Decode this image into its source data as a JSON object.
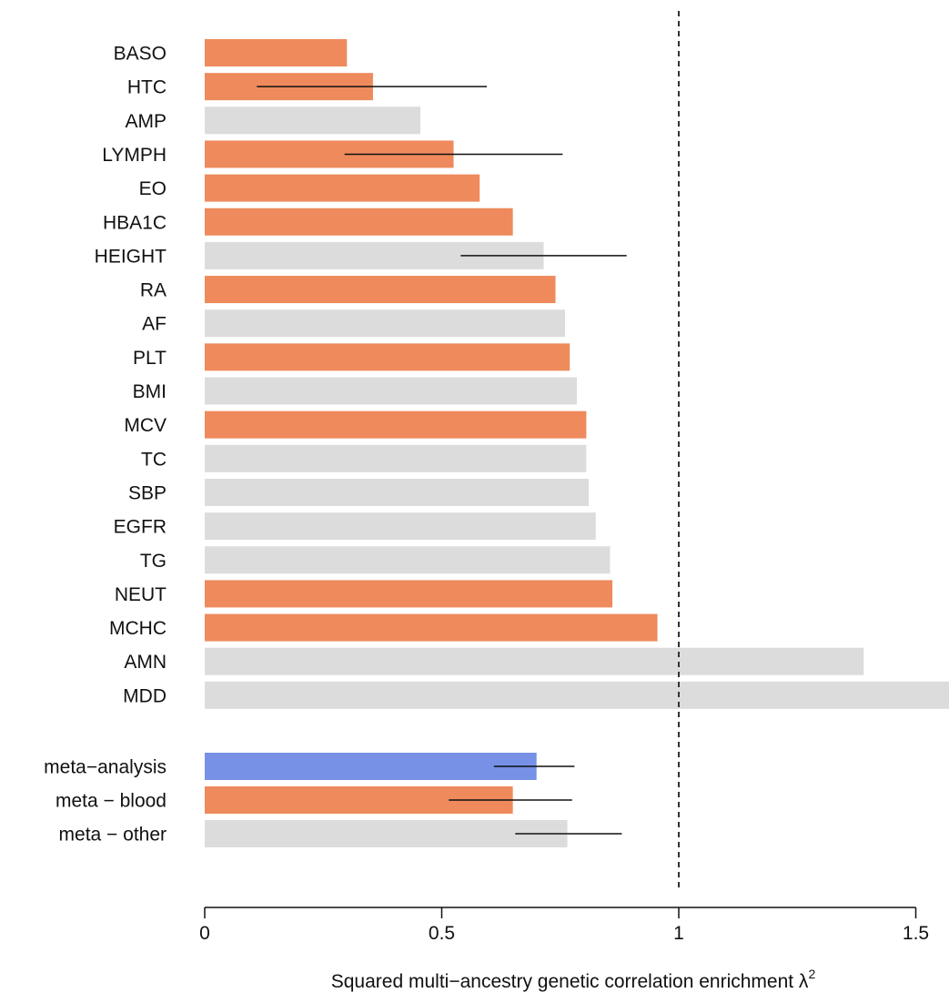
{
  "chart_data": {
    "type": "bar",
    "orientation": "horizontal",
    "colors": {
      "blood": "#EE8A5C",
      "other": "#DCDCDC",
      "meta": "#7691E6"
    },
    "bars": [
      {
        "label": "BASO",
        "value": 0.3,
        "group": "blood",
        "ci": null
      },
      {
        "label": "HTC",
        "value": 0.355,
        "group": "blood",
        "ci": [
          0.11,
          0.595
        ]
      },
      {
        "label": "AMP",
        "value": 0.455,
        "group": "other",
        "ci": null
      },
      {
        "label": "LYMPH",
        "value": 0.525,
        "group": "blood",
        "ci": [
          0.295,
          0.755
        ]
      },
      {
        "label": "EO",
        "value": 0.58,
        "group": "blood",
        "ci": null
      },
      {
        "label": "HBA1C",
        "value": 0.65,
        "group": "blood",
        "ci": null
      },
      {
        "label": "HEIGHT",
        "value": 0.715,
        "group": "other",
        "ci": [
          0.54,
          0.89
        ]
      },
      {
        "label": "RA",
        "value": 0.74,
        "group": "blood",
        "ci": null
      },
      {
        "label": "AF",
        "value": 0.76,
        "group": "other",
        "ci": null
      },
      {
        "label": "PLT",
        "value": 0.77,
        "group": "blood",
        "ci": null
      },
      {
        "label": "BMI",
        "value": 0.785,
        "group": "other",
        "ci": null
      },
      {
        "label": "MCV",
        "value": 0.805,
        "group": "blood",
        "ci": null
      },
      {
        "label": "TC",
        "value": 0.805,
        "group": "other",
        "ci": null
      },
      {
        "label": "SBP",
        "value": 0.81,
        "group": "other",
        "ci": null
      },
      {
        "label": "EGFR",
        "value": 0.825,
        "group": "other",
        "ci": null
      },
      {
        "label": "TG",
        "value": 0.855,
        "group": "other",
        "ci": null
      },
      {
        "label": "NEUT",
        "value": 0.86,
        "group": "blood",
        "ci": null
      },
      {
        "label": "MCHC",
        "value": 0.955,
        "group": "blood",
        "ci": null
      },
      {
        "label": "AMN",
        "value": 1.39,
        "group": "other",
        "ci": null
      },
      {
        "label": "MDD",
        "value": 1.6,
        "group": "other",
        "ci": null
      },
      {
        "label": "meta−analysis",
        "value": 0.7,
        "group": "meta",
        "ci": [
          0.61,
          0.78
        ]
      },
      {
        "label": "meta − blood",
        "value": 0.65,
        "group": "blood",
        "ci": [
          0.515,
          0.775
        ]
      },
      {
        "label": "meta − other",
        "value": 0.765,
        "group": "other",
        "ci": [
          0.655,
          0.88
        ]
      }
    ],
    "xticks": [
      0,
      0.5,
      1,
      1.5
    ],
    "xtick_labels": [
      "0",
      "0.5",
      "1",
      "1.5"
    ],
    "xlim": [
      0,
      1.58
    ],
    "reference_line": 1,
    "xlabel": "Squared multi−ancestry genetic correlation enrichment λ",
    "xlabel_superscript": "2"
  }
}
